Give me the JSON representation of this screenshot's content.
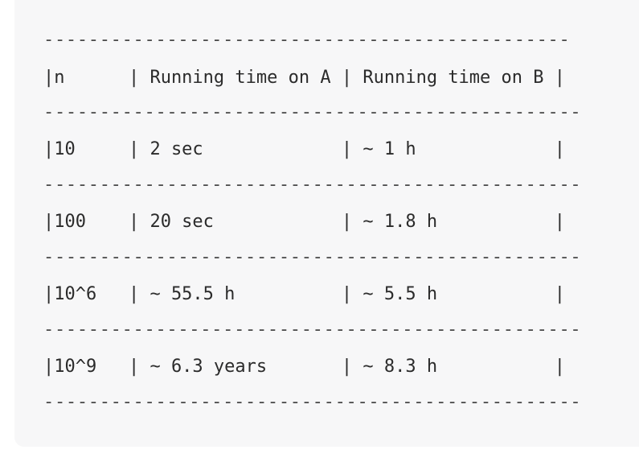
{
  "table": {
    "rule_top": "-----------------------------------------------",
    "header": "|n      | Running time on A | Running time on B |",
    "rule_after_header": "------------------------------------------------",
    "rows": [
      "|10     | 2 sec             | ~ 1 h             |",
      "|100    | 20 sec            | ~ 1.8 h           |",
      "|10^6   | ~ 55.5 h          | ~ 5.5 h           |",
      "|10^9   | ~ 6.3 years       | ~ 8.3 h           |"
    ],
    "row_rules": [
      "------------------------------------------------",
      "------------------------------------------------",
      "------------------------------------------------",
      "------------------------------------------------"
    ]
  }
}
